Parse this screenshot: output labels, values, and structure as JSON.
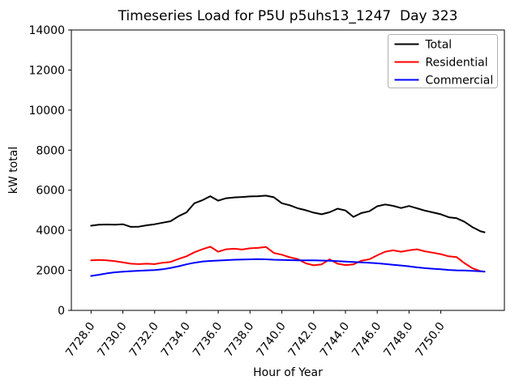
{
  "chart_data": {
    "type": "line",
    "title": "Timeseries Load for P5U p5uhs13_1247  Day 323",
    "xlabel": "Hour of Year",
    "ylabel": "kW total",
    "xlim": [
      7726.76,
      7754.0
    ],
    "ylim": [
      0,
      14000
    ],
    "grid": false,
    "legend_position": "upper right",
    "x_ticks": [
      7728,
      7730,
      7732,
      7734,
      7736,
      7738,
      7740,
      7742,
      7744,
      7746,
      7748,
      7750
    ],
    "x_tick_labels": [
      "7728.0",
      "7730.0",
      "7732.0",
      "7734.0",
      "7736.0",
      "7738.0",
      "7740.0",
      "7742.0",
      "7744.0",
      "7746.0",
      "7748.0",
      "7750.0"
    ],
    "y_ticks": [
      0,
      2000,
      4000,
      6000,
      8000,
      10000,
      12000,
      14000
    ],
    "y_tick_labels": [
      "0",
      "2000",
      "4000",
      "6000",
      "8000",
      "10000",
      "12000",
      "14000"
    ],
    "x": [
      7728.0,
      7728.5,
      7729.0,
      7729.5,
      7730.0,
      7730.5,
      7731.0,
      7731.5,
      7732.0,
      7732.5,
      7733.0,
      7733.5,
      7734.0,
      7734.5,
      7735.0,
      7735.5,
      7736.0,
      7736.5,
      7737.0,
      7737.5,
      7738.0,
      7738.5,
      7739.0,
      7739.5,
      7740.0,
      7740.5,
      7741.0,
      7741.5,
      7742.0,
      7742.5,
      7743.0,
      7743.5,
      7744.0,
      7744.5,
      7745.0,
      7745.5,
      7746.0,
      7746.5,
      7747.0,
      7747.5,
      7748.0,
      7748.5,
      7749.0,
      7749.5,
      7750.0,
      7750.5,
      7751.0,
      7751.5,
      7752.0,
      7752.5,
      7752.75
    ],
    "series": [
      {
        "name": "Total",
        "color": "#000000",
        "values": [
          4230,
          4280,
          4290,
          4280,
          4300,
          4170,
          4180,
          4250,
          4300,
          4380,
          4450,
          4700,
          4890,
          5350,
          5500,
          5700,
          5480,
          5600,
          5640,
          5660,
          5690,
          5700,
          5730,
          5650,
          5350,
          5250,
          5100,
          5000,
          4880,
          4800,
          4900,
          5080,
          4990,
          4670,
          4860,
          4950,
          5200,
          5290,
          5220,
          5110,
          5210,
          5100,
          4980,
          4890,
          4800,
          4650,
          4600,
          4420,
          4150,
          3950,
          3900
        ]
      },
      {
        "name": "Residential",
        "color": "#ff0000",
        "values": [
          2500,
          2520,
          2500,
          2460,
          2400,
          2330,
          2310,
          2330,
          2310,
          2380,
          2420,
          2570,
          2700,
          2900,
          3050,
          3180,
          2930,
          3050,
          3080,
          3040,
          3100,
          3120,
          3170,
          2870,
          2780,
          2650,
          2560,
          2350,
          2250,
          2300,
          2550,
          2330,
          2260,
          2300,
          2480,
          2550,
          2750,
          2930,
          3000,
          2930,
          3000,
          3050,
          2950,
          2880,
          2810,
          2700,
          2660,
          2350,
          2100,
          1960,
          1930
        ]
      },
      {
        "name": "Commercial",
        "color": "#0000ff",
        "values": [
          1720,
          1780,
          1850,
          1900,
          1930,
          1960,
          1980,
          2000,
          2010,
          2050,
          2120,
          2200,
          2300,
          2380,
          2440,
          2470,
          2490,
          2510,
          2530,
          2540,
          2550,
          2560,
          2550,
          2530,
          2520,
          2510,
          2500,
          2500,
          2500,
          2490,
          2480,
          2460,
          2440,
          2420,
          2400,
          2380,
          2350,
          2320,
          2280,
          2240,
          2200,
          2150,
          2110,
          2080,
          2050,
          2020,
          2000,
          1990,
          1970,
          1950,
          1940
        ]
      }
    ],
    "legend_frame_color": "#b0b0b0"
  }
}
